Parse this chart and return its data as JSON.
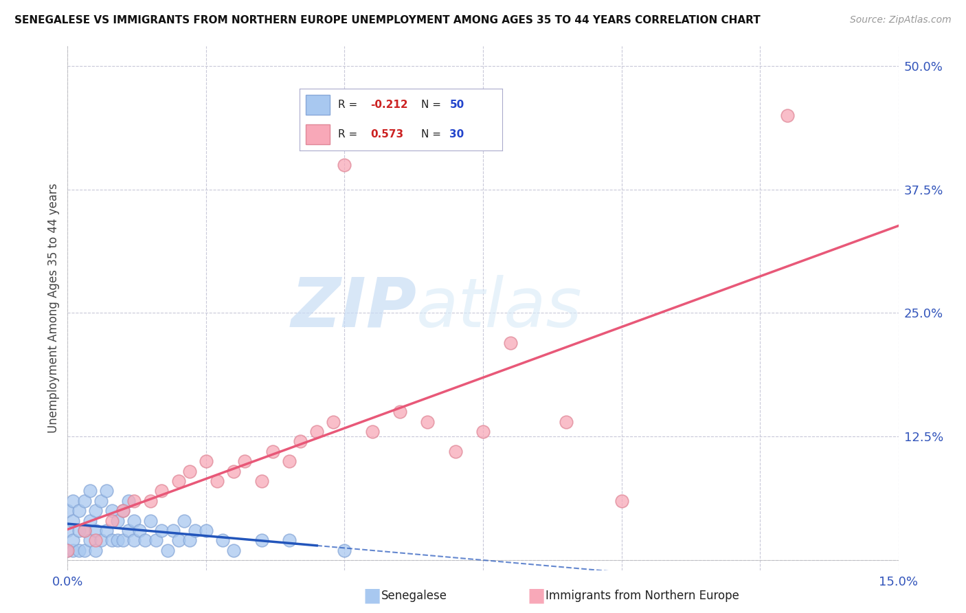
{
  "title": "SENEGALESE VS IMMIGRANTS FROM NORTHERN EUROPE UNEMPLOYMENT AMONG AGES 35 TO 44 YEARS CORRELATION CHART",
  "source": "Source: ZipAtlas.com",
  "ylabel": "Unemployment Among Ages 35 to 44 years",
  "xlim": [
    0.0,
    0.15
  ],
  "ylim": [
    -0.01,
    0.52
  ],
  "xticks": [
    0.0,
    0.025,
    0.05,
    0.075,
    0.1,
    0.125,
    0.15
  ],
  "xtick_labels": [
    "0.0%",
    "",
    "",
    "",
    "",
    "",
    "15.0%"
  ],
  "yticks": [
    0.0,
    0.125,
    0.25,
    0.375,
    0.5
  ],
  "ytick_labels": [
    "",
    "12.5%",
    "25.0%",
    "37.5%",
    "50.0%"
  ],
  "background_color": "#ffffff",
  "grid_color": "#c8c8d8",
  "watermark_zip": "ZIP",
  "watermark_atlas": "atlas",
  "senegalese_color": "#a8c8f0",
  "senegalese_edge": "#88a8d8",
  "northern_europe_color": "#f8a8b8",
  "northern_europe_edge": "#e08898",
  "blue_trend_color": "#2255bb",
  "pink_trend_color": "#e85878",
  "series": [
    {
      "label": "Senegalese",
      "R": -0.212,
      "N": 50,
      "x": [
        0.0,
        0.0,
        0.0,
        0.001,
        0.001,
        0.001,
        0.001,
        0.002,
        0.002,
        0.002,
        0.003,
        0.003,
        0.003,
        0.004,
        0.004,
        0.004,
        0.005,
        0.005,
        0.005,
        0.006,
        0.006,
        0.007,
        0.007,
        0.008,
        0.008,
        0.009,
        0.009,
        0.01,
        0.01,
        0.011,
        0.011,
        0.012,
        0.012,
        0.013,
        0.014,
        0.015,
        0.016,
        0.017,
        0.018,
        0.019,
        0.02,
        0.021,
        0.022,
        0.023,
        0.025,
        0.028,
        0.03,
        0.035,
        0.04,
        0.05
      ],
      "y": [
        0.01,
        0.03,
        0.05,
        0.01,
        0.02,
        0.04,
        0.06,
        0.01,
        0.03,
        0.05,
        0.01,
        0.03,
        0.06,
        0.02,
        0.04,
        0.07,
        0.01,
        0.03,
        0.05,
        0.02,
        0.06,
        0.03,
        0.07,
        0.02,
        0.05,
        0.02,
        0.04,
        0.02,
        0.05,
        0.03,
        0.06,
        0.02,
        0.04,
        0.03,
        0.02,
        0.04,
        0.02,
        0.03,
        0.01,
        0.03,
        0.02,
        0.04,
        0.02,
        0.03,
        0.03,
        0.02,
        0.01,
        0.02,
        0.02,
        0.01
      ]
    },
    {
      "label": "Immigrants from Northern Europe",
      "R": 0.573,
      "N": 30,
      "x": [
        0.0,
        0.003,
        0.005,
        0.008,
        0.01,
        0.012,
        0.015,
        0.017,
        0.02,
        0.022,
        0.025,
        0.027,
        0.03,
        0.032,
        0.035,
        0.037,
        0.04,
        0.042,
        0.045,
        0.048,
        0.05,
        0.055,
        0.06,
        0.065,
        0.07,
        0.075,
        0.08,
        0.09,
        0.1,
        0.13
      ],
      "y": [
        0.01,
        0.03,
        0.02,
        0.04,
        0.05,
        0.06,
        0.06,
        0.07,
        0.08,
        0.09,
        0.1,
        0.08,
        0.09,
        0.1,
        0.08,
        0.11,
        0.1,
        0.12,
        0.13,
        0.14,
        0.4,
        0.13,
        0.15,
        0.14,
        0.11,
        0.13,
        0.22,
        0.14,
        0.06,
        0.45
      ]
    }
  ]
}
